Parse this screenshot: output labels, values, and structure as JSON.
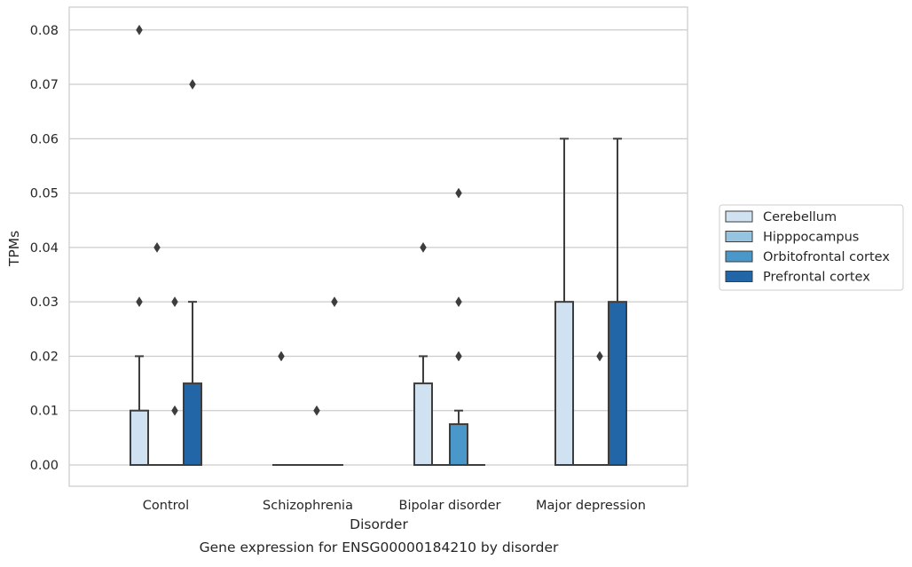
{
  "chart_data": {
    "type": "box",
    "xlabel": "Disorder",
    "ylabel": "TPMs",
    "caption": "Gene expression for ENSG00000184210 by disorder",
    "categories": [
      "Control",
      "Schizophrenia",
      "Bipolar disorder",
      "Major depression"
    ],
    "y_ticks": [
      "0.00",
      "0.01",
      "0.02",
      "0.03",
      "0.04",
      "0.05",
      "0.06",
      "0.07",
      "0.08"
    ],
    "ylim": [
      -0.004,
      0.084
    ],
    "grid": "horizontal",
    "legend_position": "right",
    "series": [
      {
        "name": "Cerebellum",
        "color": "#d0e1f2",
        "boxes": [
          {
            "q1": 0,
            "median": 0,
            "q3": 0.01,
            "whisker_low": 0,
            "whisker_high": 0.02,
            "outliers": [
              0.03,
              0.08
            ]
          },
          {
            "q1": 0,
            "median": 0,
            "q3": 0,
            "whisker_low": 0,
            "whisker_high": 0,
            "outliers": [
              0.02
            ]
          },
          {
            "q1": 0,
            "median": 0,
            "q3": 0.015,
            "whisker_low": 0,
            "whisker_high": 0.02,
            "outliers": [
              0.04
            ]
          },
          {
            "q1": 0,
            "median": 0,
            "q3": 0.03,
            "whisker_low": 0,
            "whisker_high": 0.06,
            "outliers": []
          }
        ]
      },
      {
        "name": "Hipppocampus",
        "color": "#94c4df",
        "boxes": [
          {
            "q1": 0,
            "median": 0,
            "q3": 0,
            "whisker_low": 0,
            "whisker_high": 0,
            "outliers": [
              0.04
            ]
          },
          {
            "q1": 0,
            "median": 0,
            "q3": 0,
            "whisker_low": 0,
            "whisker_high": 0,
            "outliers": []
          },
          {
            "q1": 0,
            "median": 0,
            "q3": 0,
            "whisker_low": 0,
            "whisker_high": 0,
            "outliers": []
          },
          {
            "q1": 0,
            "median": 0,
            "q3": 0,
            "whisker_low": 0,
            "whisker_high": 0,
            "outliers": []
          }
        ]
      },
      {
        "name": "Orbitofrontal cortex",
        "color": "#4a98c9",
        "boxes": [
          {
            "q1": 0,
            "median": 0,
            "q3": 0,
            "whisker_low": 0,
            "whisker_high": 0,
            "outliers": [
              0.01,
              0.03
            ]
          },
          {
            "q1": 0,
            "median": 0,
            "q3": 0,
            "whisker_low": 0,
            "whisker_high": 0,
            "outliers": [
              0.01
            ]
          },
          {
            "q1": 0,
            "median": 0,
            "q3": 0.0075,
            "whisker_low": 0,
            "whisker_high": 0.01,
            "outliers": [
              0.02,
              0.03,
              0.05
            ]
          },
          {
            "q1": 0,
            "median": 0,
            "q3": 0,
            "whisker_low": 0,
            "whisker_high": 0,
            "outliers": [
              0.02
            ]
          }
        ]
      },
      {
        "name": "Prefrontal cortex",
        "color": "#2366a8",
        "boxes": [
          {
            "q1": 0,
            "median": 0,
            "q3": 0.015,
            "whisker_low": 0,
            "whisker_high": 0.03,
            "outliers": [
              0.07
            ]
          },
          {
            "q1": 0,
            "median": 0,
            "q3": 0,
            "whisker_low": 0,
            "whisker_high": 0,
            "outliers": [
              0.03
            ]
          },
          {
            "q1": 0,
            "median": 0,
            "q3": 0,
            "whisker_low": 0,
            "whisker_high": 0,
            "outliers": []
          },
          {
            "q1": 0,
            "median": 0,
            "q3": 0.03,
            "whisker_low": 0,
            "whisker_high": 0.06,
            "outliers": []
          }
        ]
      }
    ]
  }
}
